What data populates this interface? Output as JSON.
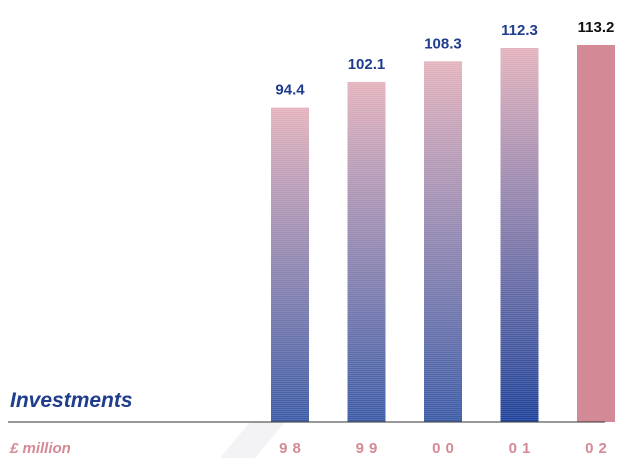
{
  "colors": {
    "navy": "#1f3d8c",
    "pink": "#d48a96",
    "gradient_top": "#e4b3bd",
    "gradient_bottom": "#3c5ba6",
    "gradient_bottom_dark": "#1f4299",
    "axis": "#333333",
    "last_label": "#111111"
  },
  "chart_data": {
    "type": "bar",
    "title": "Investments",
    "unit_label": "£ million",
    "categories": [
      "98",
      "99",
      "00",
      "01",
      "02"
    ],
    "values": [
      94.4,
      102.1,
      108.3,
      112.3,
      113.2
    ],
    "value_labels": [
      "94.4",
      "102.1",
      "108.3",
      "112.3",
      "113.2"
    ],
    "ylim": [
      0,
      113.2
    ],
    "grid": false,
    "legend": "none"
  }
}
